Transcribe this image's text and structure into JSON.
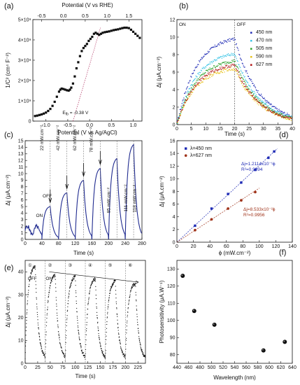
{
  "chart_data": [
    {
      "panel": "(a)",
      "type": "scatter",
      "xlabel": "Potential (V vs Ag/AgCl)",
      "x2label": "Potential (V vs RHE)",
      "ylabel": "1/C² (cm⁴ F⁻²)",
      "xlim": [
        -1.3,
        1.2
      ],
      "ylim": [
        0,
        5000000000.0
      ],
      "x2lim": [
        -0.7,
        1.8
      ],
      "xticks": [
        "-1.0",
        "-0.5",
        "0.0",
        "0.5",
        "1.0"
      ],
      "xticks_values": [
        -1.0,
        -0.5,
        0.0,
        0.5,
        1.0
      ],
      "x2ticks": [
        "-0.5",
        "0.0",
        "0.5",
        "1.0",
        "1.5"
      ],
      "x2ticks_values": [
        -0.5,
        0.0,
        0.5,
        1.0,
        1.5
      ],
      "yticks": [
        "0",
        "1×10⁹",
        "2×10⁹",
        "3×10⁹",
        "4×10⁹",
        "5×10⁹"
      ],
      "yticks_values": [
        0,
        1000000000.0,
        2000000000.0,
        3000000000.0,
        4000000000.0,
        5000000000.0
      ],
      "annotation": "E<sub>fb</sub> = -0.38 V",
      "annotation_text": "E",
      "annotation_sub": "fb",
      "annotation_rest": " = -0.38 V",
      "fit_line": {
        "x": [
          -0.38,
          0.25
        ],
        "y": [
          0,
          4600000000.0
        ]
      },
      "x": [
        -1.25,
        -1.2,
        -1.15,
        -1.1,
        -1.05,
        -1.0,
        -0.95,
        -0.9,
        -0.85,
        -0.8,
        -0.75,
        -0.7,
        -0.67,
        -0.64,
        -0.6,
        -0.56,
        -0.52,
        -0.48,
        -0.45,
        -0.42,
        -0.38,
        -0.34,
        -0.3,
        -0.26,
        -0.22,
        -0.18,
        -0.14,
        -0.1,
        -0.06,
        -0.02,
        0.02,
        0.06,
        0.1,
        0.14,
        0.18,
        0.22,
        0.26,
        0.3,
        0.35,
        0.4,
        0.45,
        0.5,
        0.55,
        0.6,
        0.65,
        0.7,
        0.75,
        0.8,
        0.85,
        0.9,
        0.95,
        1.0,
        1.05,
        1.1,
        1.15
      ],
      "y": [
        250000000.0,
        270000000.0,
        300000000.0,
        330000000.0,
        370000000.0,
        420000000.0,
        500000000.0,
        600000000.0,
        750000000.0,
        950000000.0,
        1200000000.0,
        1450000000.0,
        1550000000.0,
        1600000000.0,
        1580000000.0,
        1550000000.0,
        1520000000.0,
        1500000000.0,
        1550000000.0,
        1650000000.0,
        1850000000.0,
        2200000000.0,
        2600000000.0,
        2900000000.0,
        3200000000.0,
        3450000000.0,
        3600000000.0,
        3700000000.0,
        3800000000.0,
        3950000000.0,
        4050000000.0,
        4150000000.0,
        4300000000.0,
        4350000000.0,
        4300000000.0,
        4250000000.0,
        4300000000.0,
        4350000000.0,
        4380000000.0,
        4400000000.0,
        4420000000.0,
        4450000000.0,
        4480000000.0,
        4500000000.0,
        4520000000.0,
        4550000000.0,
        4580000000.0,
        4600000000.0,
        4600000000.0,
        4580000000.0,
        4500000000.0,
        4400000000.0,
        4300000000.0,
        4200000000.0,
        4100000000.0
      ]
    },
    {
      "panel": "(b)",
      "type": "scatter",
      "xlabel": "Time (s)",
      "ylabel": "Δj (μA.cm⁻²)",
      "xlim": [
        0,
        40
      ],
      "ylim": [
        0,
        12
      ],
      "xticks_values": [
        0,
        5,
        10,
        15,
        20,
        25,
        30,
        35,
        40
      ],
      "yticks_values": [
        0,
        2,
        4,
        6,
        8,
        10,
        12
      ],
      "annotations": [
        "ON",
        "OFF"
      ],
      "switch_time": 20,
      "series": [
        {
          "name": "450 nm",
          "color": "#1f2bb5",
          "peak": 9.8
        },
        {
          "name": "470 nm",
          "color": "#39c4e6",
          "peak": 8.1
        },
        {
          "name": "505 nm",
          "color": "#2aa02a",
          "peak": 7.3
        },
        {
          "name": "590 nm",
          "color": "#e8c21a",
          "peak": 6.4
        },
        {
          "name": "627 nm",
          "color": "#b01010",
          "peak": 6.8
        }
      ]
    },
    {
      "panel": "(c)",
      "type": "line",
      "xlabel": "Time (s)",
      "ylabel": "Δj (μA.cm⁻²)",
      "xlim": [
        0,
        280
      ],
      "ylim": [
        0,
        15
      ],
      "xticks_values": [
        0,
        40,
        80,
        120,
        160,
        200,
        240,
        280
      ],
      "yticks_values": [
        0,
        1,
        2,
        3,
        4,
        5,
        6,
        7,
        8,
        9,
        10,
        11,
        12,
        13,
        14,
        15
      ],
      "cycles": [
        {
          "on": 40,
          "off": 60,
          "peak": 5.0,
          "power": "22 mW.cm⁻²"
        },
        {
          "on": 80,
          "off": 100,
          "peak": 7.1,
          "power": "42 mW.cm⁻²"
        },
        {
          "on": 120,
          "off": 140,
          "peak": 9.0,
          "power": "62 mW.cm⁻²"
        },
        {
          "on": 160,
          "off": 180,
          "peak": 10.8,
          "power": "78 mW.cm⁻²"
        },
        {
          "on": 200,
          "off": 220,
          "peak": 12.3,
          "power": "95 mW.cm⁻²"
        },
        {
          "on": 240,
          "off": 260,
          "peak": 14.4,
          "power": "111 mW.cm⁻²"
        },
        {
          "on": 255,
          "off": 270,
          "peak": 15.0,
          "power": "118 mW.cm⁻²"
        }
      ],
      "initial": {
        "t": [
          0,
          40
        ],
        "peak": 2.5
      },
      "labels": [
        "ON",
        "OFF"
      ]
    },
    {
      "panel": "(d)",
      "type": "scatter",
      "xlabel": "ϕ (mW.cm⁻²)",
      "ylabel": "Δj (μA.cm⁻²)",
      "xlim": [
        0,
        140
      ],
      "ylim": [
        0,
        16
      ],
      "xticks_values": [
        0,
        20,
        40,
        60,
        80,
        100,
        120,
        140
      ],
      "yticks_values": [
        0,
        2,
        4,
        6,
        8,
        10,
        12,
        14,
        16
      ],
      "series": [
        {
          "name": "λ=450 nm",
          "color": "#1f2bb5",
          "x": [
            22,
            42,
            62,
            78,
            95,
            111,
            118
          ],
          "y": [
            2.6,
            5.3,
            7.6,
            9.4,
            11.4,
            13.3,
            14.3
          ],
          "fit": "Δj=1.2114x10⁻¹ϕ",
          "r2": "R²=0.9994",
          "slope": 0.1211
        },
        {
          "name": "λ=627 nm",
          "color": "#a0341b",
          "x": [
            22,
            42,
            62,
            78,
            95
          ],
          "y": [
            1.9,
            3.6,
            5.3,
            6.6,
            7.9
          ],
          "fit": "Δj=8.533x10⁻²ϕ",
          "r2": "R²=0.9956",
          "slope": 0.0853
        }
      ]
    },
    {
      "panel": "(e)",
      "type": "scatter",
      "xlabel": "Time (s)",
      "ylabel": "Δj (μA.cm⁻²)",
      "xlim": [
        0,
        240
      ],
      "ylim": [
        0,
        45
      ],
      "xticks_values": [
        0,
        25,
        50,
        75,
        100,
        125,
        150,
        175,
        200,
        225
      ],
      "yticks_values": [
        0,
        10,
        20,
        30,
        40
      ],
      "cycle_markers": [
        "①",
        "②",
        "③",
        "④",
        "⑤",
        "⑥"
      ],
      "cycle_starts": [
        0,
        40,
        80,
        120,
        160,
        200
      ],
      "peaks": [
        42.5,
        38.5,
        38,
        37,
        36,
        35
      ],
      "labels": [
        "OFF",
        "ON"
      ]
    },
    {
      "panel": "(f)",
      "type": "scatter",
      "xlabel": "Wavelength (nm)",
      "ylabel": "Photosensitivity (μA.W⁻¹)",
      "xlim": [
        440,
        640
      ],
      "ylim": [
        75,
        135
      ],
      "xticks_values": [
        440,
        460,
        480,
        500,
        520,
        540,
        560,
        580,
        600,
        620,
        640
      ],
      "yticks_values": [
        80,
        90,
        100,
        110,
        120,
        130
      ],
      "x": [
        450,
        470,
        505,
        590,
        627
      ],
      "y": [
        126,
        105.5,
        97.5,
        82.5,
        87.5
      ]
    }
  ]
}
